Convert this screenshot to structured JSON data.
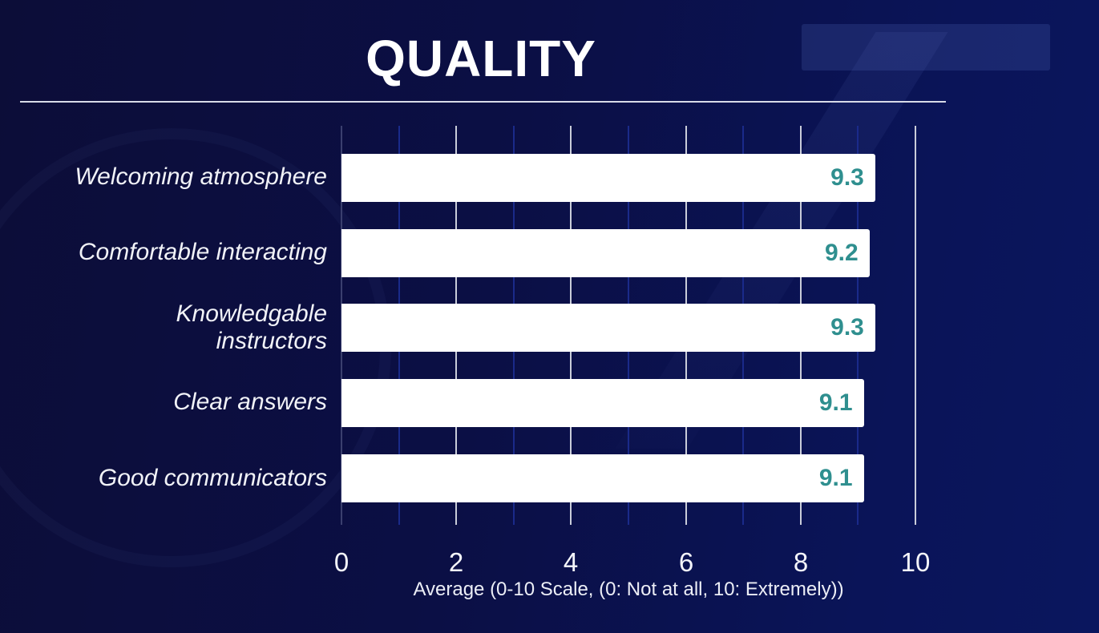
{
  "title": "QUALITY",
  "colors": {
    "background": "#0b0f45",
    "bar_fill": "#ffffff",
    "value_label": "#2f8f8f",
    "text": "#ffffff",
    "major_grid": "#c9ccd9",
    "minor_grid": "#1a2a8a"
  },
  "chart_data": {
    "type": "bar",
    "orientation": "horizontal",
    "title": "QUALITY",
    "categories": [
      "Welcoming atmosphere",
      "Comfortable interacting",
      "Knowledgable instructors",
      "Clear answers",
      "Good communicators"
    ],
    "category_lines": [
      [
        "Welcoming atmosphere"
      ],
      [
        "Comfortable interacting"
      ],
      [
        "Knowledgable",
        "instructors"
      ],
      [
        "Clear answers"
      ],
      [
        "Good communicators"
      ]
    ],
    "values": [
      9.3,
      9.2,
      9.3,
      9.1,
      9.1
    ],
    "value_labels": [
      "9.3",
      "9.2",
      "9.3",
      "9.1",
      "9.1"
    ],
    "xlabel": "Average (0-10 Scale, (0: Not at all, 10: Extremely))",
    "ylabel": "",
    "xlim": [
      0,
      10
    ],
    "xticks": [
      "0",
      "2",
      "4",
      "6",
      "8",
      "10"
    ],
    "grid": true,
    "legend": null
  }
}
